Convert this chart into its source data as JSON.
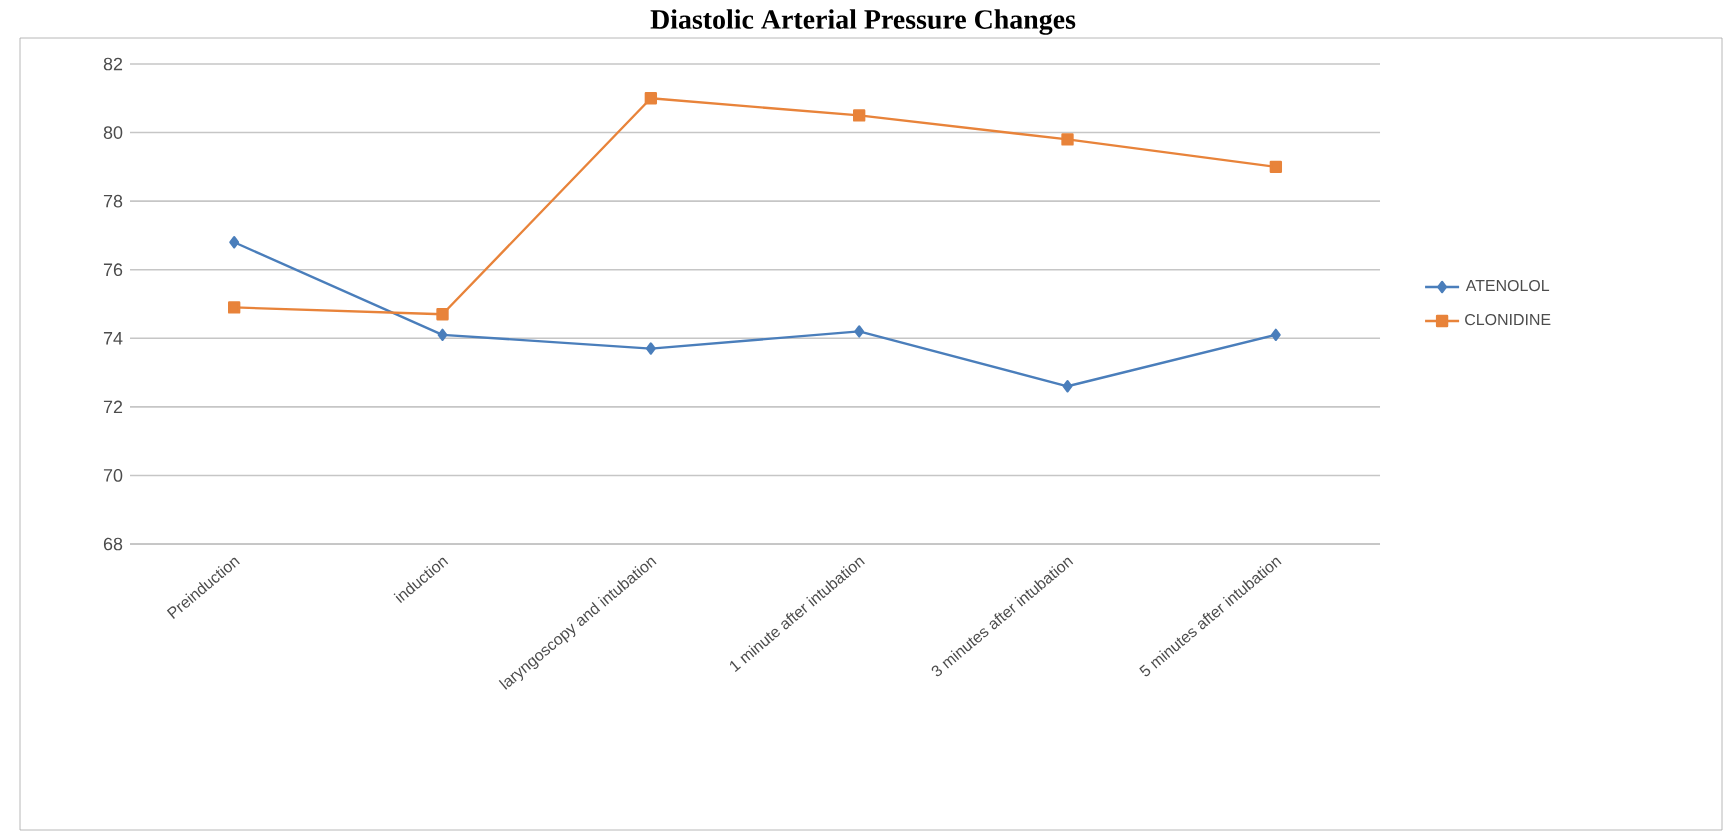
{
  "chart_data": {
    "type": "line",
    "title": "Diastolic Arterial Pressure Changes",
    "categories": [
      "Preinduction",
      "induction",
      "laryngoscopy and intubation",
      "1 minute after intubation",
      "3 minutes after intubation",
      "5 minutes after intubation"
    ],
    "series": [
      {
        "name": "ATENOLOL",
        "color": "#4a7ebb",
        "marker": "diamond",
        "values": [
          76.8,
          74.1,
          73.7,
          74.2,
          72.6,
          74.1
        ]
      },
      {
        "name": "CLONIDINE",
        "color": "#e8833a",
        "marker": "square",
        "values": [
          74.9,
          74.7,
          81.0,
          80.5,
          79.8,
          79.0
        ]
      }
    ],
    "ylim": [
      68,
      82
    ],
    "yticks": [
      68,
      70,
      72,
      74,
      76,
      78,
      80,
      82
    ],
    "grid": "y",
    "legend": "right"
  }
}
